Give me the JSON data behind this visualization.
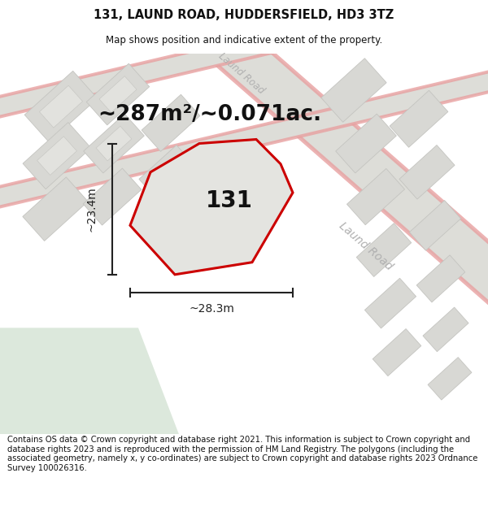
{
  "title": "131, LAUND ROAD, HUDDERSFIELD, HD3 3TZ",
  "subtitle": "Map shows position and indicative extent of the property.",
  "footer": "Contains OS data © Crown copyright and database right 2021. This information is subject to Crown copyright and database rights 2023 and is reproduced with the permission of HM Land Registry. The polygons (including the associated geometry, namely x, y co-ordinates) are subject to Crown copyright and database rights 2023 Ordnance Survey 100026316.",
  "area_label": "~287m²/~0.071ac.",
  "property_number": "131",
  "width_label": "~28.3m",
  "height_label": "~23.4m",
  "map_bg": "#efefea",
  "building_fill": "#d8d8d4",
  "building_edge": "#c4c4c0",
  "road_fill": "#ddddd8",
  "road_edge": "#e8a0a0",
  "green_fill": "#dce8dc",
  "property_fill": "#e4e4e0",
  "property_edge": "#cc0000",
  "dim_color": "#222222",
  "text_color": "#111111",
  "road_label_color": "#b0b0b0",
  "title_fontsize": 10.5,
  "subtitle_fontsize": 8.5,
  "area_fontsize": 19,
  "property_num_fontsize": 20,
  "dim_fontsize": 10,
  "footer_fontsize": 7.2
}
